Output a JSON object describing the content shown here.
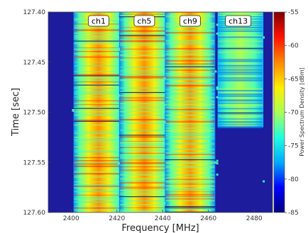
{
  "chart_data": {
    "type": "heatmap",
    "title": "",
    "xlabel": "Frequency [MHz]",
    "ylabel": "Time [sec]",
    "xlim": [
      2390,
      2488
    ],
    "ylim": [
      127.4,
      127.6
    ],
    "x_ticks": [
      "2400",
      "2420",
      "2440",
      "2460",
      "2480"
    ],
    "y_ticks": [
      "127.40",
      "127.45",
      "127.50",
      "127.55",
      "127.60"
    ],
    "colorbar": {
      "label": "Power Spectrum Density [dBm]",
      "range": [
        -85,
        -55
      ],
      "ticks": [
        "-55",
        "-60",
        "-65",
        "-70",
        "-75",
        "-80",
        "-85"
      ],
      "colormap": [
        "#00007f",
        "#0000ff",
        "#00aaff",
        "#22ffdd",
        "#aaff55",
        "#ffee00",
        "#ff8800",
        "#ff1100",
        "#7f0000"
      ]
    },
    "background_color": "#1c1c9c",
    "channels": [
      {
        "name": "ch1",
        "x_min": 2401,
        "x_max": 2423,
        "center": 2412,
        "level": "strong",
        "t_start": 127.4,
        "t_end": 127.6
      },
      {
        "name": "ch5",
        "x_min": 2421,
        "x_max": 2443,
        "center": 2432,
        "level": "strong",
        "t_start": 127.4,
        "t_end": 127.6
      },
      {
        "name": "ch9",
        "x_min": 2441,
        "x_max": 2463,
        "center": 2452,
        "level": "strong",
        "t_start": 127.4,
        "t_end": 127.6
      },
      {
        "name": "ch13",
        "x_min": 2464,
        "x_max": 2484,
        "center": 2473,
        "level": "weak",
        "t_start": 127.4,
        "t_end": 127.515
      }
    ]
  }
}
